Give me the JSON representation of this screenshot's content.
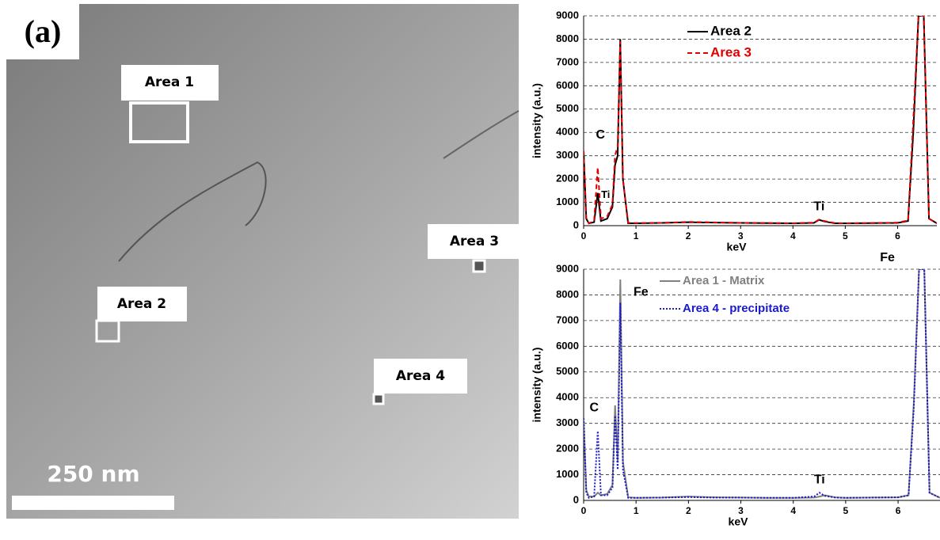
{
  "micrograph": {
    "panel_label": "(a)",
    "areas": [
      "Area 1",
      "Area 2",
      "Area 3",
      "Area 4"
    ],
    "scale_bar": "250 nm"
  },
  "chart_data": [
    {
      "type": "line",
      "x_label": "keV",
      "y_label": "intensity (a.u.)",
      "annotations": [
        "Fe",
        "Fe",
        "C",
        "Ti",
        "Ti"
      ],
      "xlim": [
        0,
        6.75
      ],
      "ylim": [
        0,
        9000
      ],
      "xticks": [
        0,
        1,
        2,
        3,
        4,
        5,
        6
      ],
      "yticks": [
        0,
        1000,
        2000,
        3000,
        4000,
        5000,
        6000,
        7000,
        8000,
        9000
      ],
      "grid": true,
      "x": [
        0,
        0.05,
        0.1,
        0.2,
        0.27,
        0.33,
        0.45,
        0.55,
        0.6,
        0.65,
        0.7,
        0.75,
        0.85,
        1,
        1.5,
        2,
        2.5,
        3,
        3.5,
        4,
        4.4,
        4.5,
        4.6,
        4.8,
        5,
        5.5,
        6,
        6.2,
        6.3,
        6.4,
        6.5,
        6.6,
        6.75
      ],
      "series": [
        {
          "name": "Area 2",
          "color": "#000000",
          "style": "solid",
          "values": [
            3200,
            300,
            100,
            150,
            1400,
            200,
            300,
            800,
            2600,
            3000,
            8000,
            2000,
            100,
            100,
            120,
            150,
            130,
            120,
            110,
            100,
            120,
            250,
            180,
            100,
            100,
            110,
            120,
            200,
            4000,
            9000,
            9000,
            300,
            100
          ]
        },
        {
          "name": "Area 3",
          "color": "#e00000",
          "style": "dashed",
          "values": [
            3200,
            300,
            100,
            200,
            2500,
            300,
            400,
            900,
            3000,
            3400,
            7900,
            2000,
            120,
            110,
            120,
            160,
            140,
            120,
            110,
            100,
            130,
            260,
            200,
            110,
            100,
            110,
            130,
            220,
            4500,
            9000,
            9000,
            300,
            100
          ]
        }
      ]
    },
    {
      "type": "line",
      "x_label": "keV",
      "y_label": "intensity (a.u.)",
      "annotations": [
        "Fe",
        "Fe",
        "C",
        "Ti"
      ],
      "xlim": [
        0,
        6.8
      ],
      "ylim": [
        0,
        9000
      ],
      "xticks": [
        0,
        1,
        2,
        3,
        4,
        5,
        6
      ],
      "yticks": [
        0,
        1000,
        2000,
        3000,
        4000,
        5000,
        6000,
        7000,
        8000,
        9000
      ],
      "grid": true,
      "x": [
        0,
        0.05,
        0.1,
        0.2,
        0.27,
        0.33,
        0.45,
        0.55,
        0.6,
        0.65,
        0.7,
        0.75,
        0.85,
        1,
        1.5,
        2,
        2.5,
        3,
        3.5,
        4,
        4.4,
        4.5,
        4.6,
        4.8,
        5,
        5.5,
        6,
        6.2,
        6.3,
        6.4,
        6.5,
        6.6,
        6.8
      ],
      "series": [
        {
          "name": "Area 1 - Matrix",
          "color": "#808080",
          "style": "solid",
          "values": [
            3200,
            400,
            150,
            150,
            300,
            200,
            250,
            600,
            3700,
            1500,
            8600,
            1500,
            120,
            100,
            110,
            150,
            120,
            110,
            100,
            100,
            110,
            150,
            200,
            120,
            100,
            110,
            120,
            200,
            3800,
            9000,
            9000,
            300,
            100
          ]
        },
        {
          "name": "Area 4 - precipitate",
          "color": "#1a1acc",
          "style": "dotted",
          "values": [
            3200,
            300,
            100,
            150,
            2700,
            200,
            200,
            500,
            3300,
            1200,
            7700,
            1200,
            100,
            100,
            110,
            130,
            110,
            110,
            100,
            100,
            150,
            300,
            180,
            110,
            100,
            110,
            120,
            200,
            3600,
            9000,
            9000,
            300,
            100
          ]
        }
      ]
    }
  ]
}
